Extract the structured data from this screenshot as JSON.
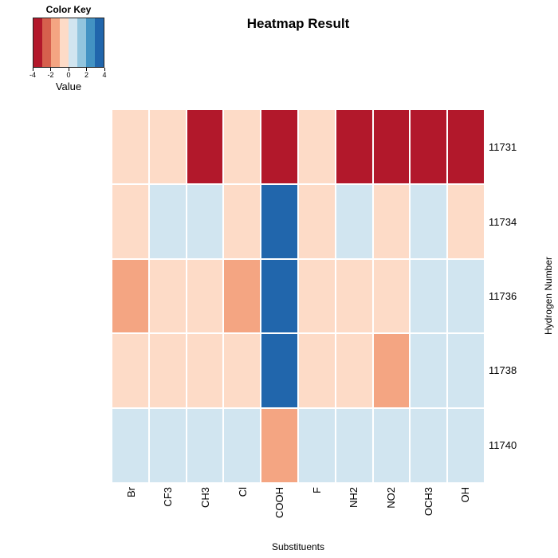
{
  "chart_data": {
    "type": "heatmap",
    "title": "Heatmap Result",
    "xlabel": "Substituents",
    "ylabel": "Hydrogen Number",
    "columns": [
      "Br",
      "CF3",
      "CH3",
      "Cl",
      "COOH",
      "F",
      "NH2",
      "NO2",
      "OCH3",
      "OH"
    ],
    "rows": [
      "11731",
      "11734",
      "11736",
      "11738",
      "11740"
    ],
    "values": [
      [
        -0.5,
        -0.5,
        -3.5,
        -0.5,
        -3.5,
        -0.5,
        -3.5,
        -3.5,
        -3.5,
        -3.5
      ],
      [
        -0.5,
        0.5,
        0.5,
        -0.5,
        3.5,
        -0.5,
        0.5,
        -0.5,
        0.5,
        -0.5
      ],
      [
        -1.5,
        -0.5,
        -0.5,
        -1.5,
        3.5,
        -0.5,
        -0.5,
        -0.5,
        0.5,
        0.5
      ],
      [
        -0.5,
        -0.5,
        -0.5,
        -0.5,
        3.5,
        -0.5,
        -0.5,
        -1.5,
        0.5,
        0.5
      ],
      [
        0.5,
        0.5,
        0.5,
        0.5,
        -1.5,
        0.5,
        0.5,
        0.5,
        0.5,
        0.5
      ]
    ],
    "colorscale": {
      "legend_title": "Color Key",
      "legend_axis_label": "Value",
      "domain": [
        -4,
        4
      ],
      "tick_labels": [
        "-4",
        "-2",
        "0",
        "2",
        "4"
      ],
      "palette": [
        "#B2182B",
        "#D6604D",
        "#F4A582",
        "#FDDBC7",
        "#D1E5F0",
        "#92C5DE",
        "#4393C3",
        "#2166AC"
      ]
    },
    "layout": {
      "grid": "off",
      "legend_position": "top-left",
      "row_labels_position": "right",
      "column_labels_rotation": "vertical"
    }
  }
}
